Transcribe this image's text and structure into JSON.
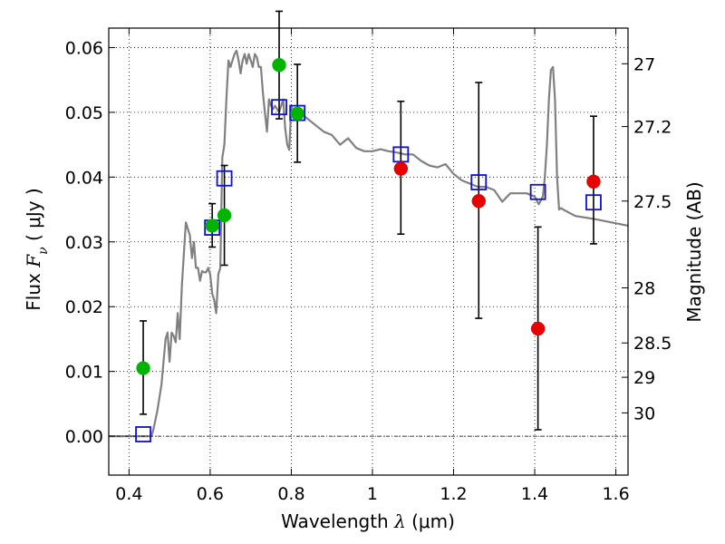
{
  "chart_data": {
    "type": "scatter",
    "title": "",
    "xlabel_prefix": "Wavelength",
    "xlabel_symbol": "λ",
    "xlabel_unit": "(μm)",
    "ylabel_prefix": "Flux",
    "ylabel_symbol": "F",
    "ylabel_subscript": "ν",
    "ylabel_unit": "( μJy )",
    "y2label": "Magnitude (AB)",
    "xlim": [
      0.35,
      1.63
    ],
    "ylim": [
      -0.006,
      0.063
    ],
    "grid": true,
    "xticks": [
      0.4,
      0.6,
      0.8,
      1.0,
      1.2,
      1.4,
      1.6
    ],
    "xtick_labels": [
      "0.4",
      "0.6",
      "0.8",
      "1",
      "1.2",
      "1.4",
      "1.6"
    ],
    "yticks": [
      0.0,
      0.01,
      0.02,
      0.03,
      0.04,
      0.05,
      0.06
    ],
    "ytick_labels": [
      "0.00",
      "0.01",
      "0.02",
      "0.03",
      "0.04",
      "0.05",
      "0.06"
    ],
    "y2_ticks": [
      {
        "label": "27",
        "flux": 0.0575
      },
      {
        "label": "27.2",
        "flux": 0.0478
      },
      {
        "label": "27.5",
        "flux": 0.0363
      },
      {
        "label": "28",
        "flux": 0.0229
      },
      {
        "label": "28.5",
        "flux": 0.0144
      },
      {
        "label": "29",
        "flux": 0.0091
      },
      {
        "label": "30",
        "flux": 0.0036
      }
    ],
    "model_spectrum": {
      "color": "#808080",
      "x": [
        0.35,
        0.455,
        0.46,
        0.47,
        0.48,
        0.49,
        0.495,
        0.5,
        0.505,
        0.51,
        0.515,
        0.52,
        0.525,
        0.53,
        0.535,
        0.54,
        0.55,
        0.555,
        0.56,
        0.565,
        0.57,
        0.575,
        0.58,
        0.585,
        0.59,
        0.595,
        0.6,
        0.605,
        0.61,
        0.615,
        0.62,
        0.625,
        0.63,
        0.635,
        0.64,
        0.645,
        0.65,
        0.655,
        0.66,
        0.665,
        0.67,
        0.675,
        0.68,
        0.685,
        0.69,
        0.695,
        0.7,
        0.705,
        0.71,
        0.715,
        0.72,
        0.725,
        0.73,
        0.735,
        0.74,
        0.745,
        0.75,
        0.755,
        0.76,
        0.77,
        0.78,
        0.785,
        0.79,
        0.795,
        0.8,
        0.805,
        0.81,
        0.82,
        0.83,
        0.84,
        0.86,
        0.88,
        0.9,
        0.92,
        0.94,
        0.96,
        0.98,
        1.0,
        1.02,
        1.04,
        1.06,
        1.08,
        1.1,
        1.12,
        1.14,
        1.16,
        1.18,
        1.2,
        1.22,
        1.24,
        1.26,
        1.28,
        1.3,
        1.32,
        1.34,
        1.36,
        1.38,
        1.4,
        1.41,
        1.42,
        1.425,
        1.43,
        1.435,
        1.44,
        1.445,
        1.45,
        1.455,
        1.46,
        1.465,
        1.47,
        1.5,
        1.55,
        1.63
      ],
      "y": [
        0.0,
        0.0,
        0.001,
        0.004,
        0.008,
        0.015,
        0.016,
        0.0115,
        0.016,
        0.0155,
        0.0145,
        0.019,
        0.015,
        0.023,
        0.028,
        0.033,
        0.031,
        0.0275,
        0.03,
        0.026,
        0.026,
        0.024,
        0.0255,
        0.0253,
        0.0253,
        0.026,
        0.025,
        0.022,
        0.021,
        0.019,
        0.025,
        0.026,
        0.043,
        0.045,
        0.052,
        0.058,
        0.057,
        0.058,
        0.059,
        0.0595,
        0.058,
        0.056,
        0.058,
        0.059,
        0.0575,
        0.059,
        0.058,
        0.057,
        0.059,
        0.0585,
        0.057,
        0.057,
        0.053,
        0.05,
        0.047,
        0.052,
        0.051,
        0.0505,
        0.051,
        0.05,
        0.052,
        0.0475,
        0.045,
        0.0442,
        0.051,
        0.05,
        0.0505,
        0.0505,
        0.0495,
        0.049,
        0.048,
        0.047,
        0.0465,
        0.045,
        0.046,
        0.0445,
        0.044,
        0.044,
        0.0443,
        0.044,
        0.0438,
        0.0435,
        0.0435,
        0.0425,
        0.0418,
        0.0415,
        0.042,
        0.0405,
        0.0395,
        0.039,
        0.0385,
        0.0385,
        0.038,
        0.0362,
        0.0375,
        0.0375,
        0.0375,
        0.037,
        0.0358,
        0.037,
        0.04,
        0.045,
        0.052,
        0.0565,
        0.057,
        0.052,
        0.04,
        0.035,
        0.0352,
        0.035,
        0.034,
        0.0335,
        0.0325
      ]
    },
    "series": [
      {
        "name": "",
        "marker": "square-open",
        "color": "#1010d0",
        "x": [
          0.435,
          0.605,
          0.635,
          0.77,
          0.815,
          1.07,
          1.262,
          1.408,
          1.545
        ],
        "y": [
          0.0003,
          0.0322,
          0.0398,
          0.0508,
          0.0499,
          0.0435,
          0.0392,
          0.0377,
          0.0361
        ]
      },
      {
        "name": "",
        "marker": "circle",
        "color": "#00b400",
        "x": [
          0.435,
          0.605,
          0.635,
          0.77,
          0.815
        ],
        "y": [
          0.0105,
          0.0325,
          0.0341,
          0.0573,
          0.0498
        ],
        "err_low": [
          0.0071,
          0.0033,
          0.0077,
          0.0083,
          0.0075
        ],
        "err_high": [
          0.0073,
          0.0034,
          0.0077,
          0.0083,
          0.0076
        ]
      },
      {
        "name": "",
        "marker": "circle",
        "color": "#e60000",
        "x": [
          1.07,
          1.262,
          1.408,
          1.545
        ],
        "y": [
          0.0413,
          0.0363,
          0.0166,
          0.0393
        ],
        "err_low": [
          0.0101,
          0.0181,
          0.0156,
          0.0096
        ],
        "err_high": [
          0.0104,
          0.0183,
          0.0157,
          0.0101
        ]
      }
    ]
  }
}
